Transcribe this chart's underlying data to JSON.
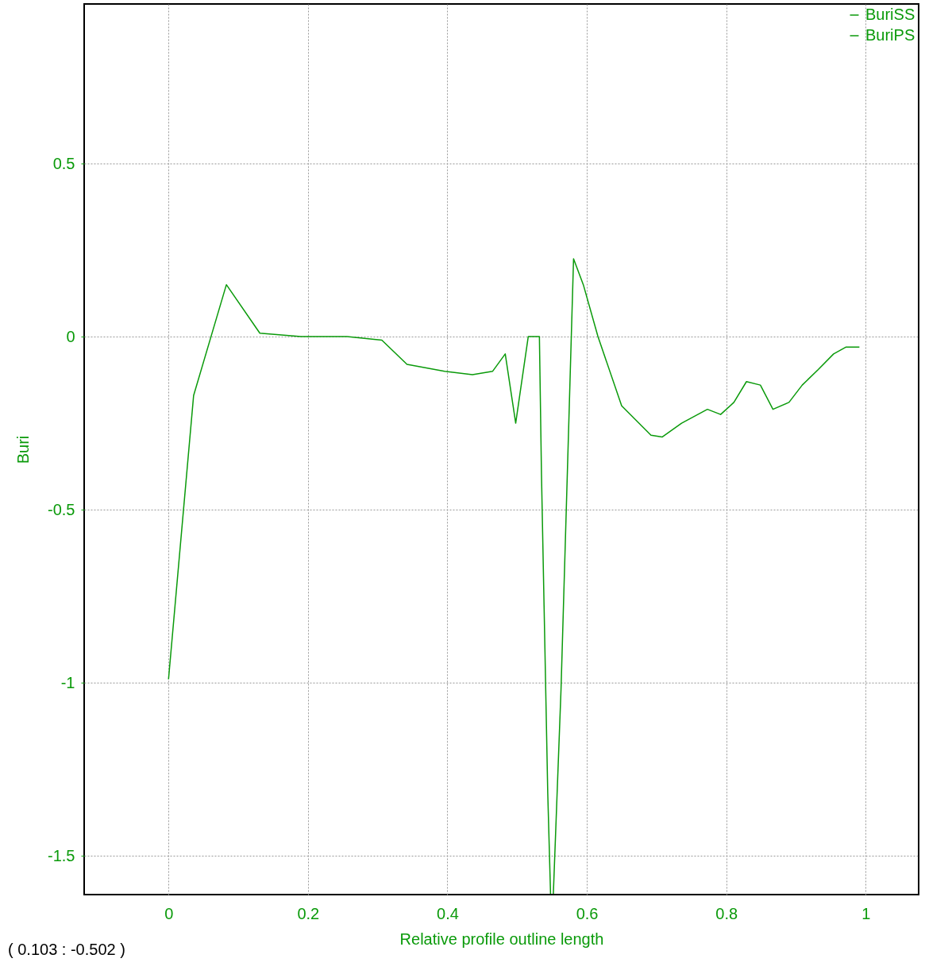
{
  "chart_data": {
    "type": "line",
    "xlabel": "Relative profile outline length",
    "ylabel": "Buri",
    "xlim": [
      -0.121,
      1.076
    ],
    "ylim": [
      -1.612,
      0.961
    ],
    "xticks": [
      0,
      0.2,
      0.4,
      0.6,
      0.8,
      1
    ],
    "yticks": [
      0.5,
      0,
      -0.5,
      -1,
      -1.5
    ],
    "grid": true,
    "legend": "top right",
    "annotations": [
      "( 0.103  : -0.502 )"
    ],
    "series": [
      {
        "name": "BuriSS",
        "color": "#0a9a0a",
        "x": [
          0,
          0.036,
          0.083,
          0.131,
          0.19,
          0.256,
          0.306,
          0.342,
          0.396,
          0.436,
          0.465,
          0.483,
          0.498,
          0.516,
          0.532,
          0.535,
          0.544,
          0.548
        ],
        "values": [
          -0.99,
          -0.17,
          0.15,
          0.01,
          0.0,
          0.0,
          -0.01,
          -0.08,
          -0.1,
          -0.11,
          -0.1,
          -0.05,
          -0.25,
          0.0,
          0.0,
          -0.4,
          -1.32,
          -1.61
        ]
      },
      {
        "name": "BuriPS",
        "color": "#0a9a0a",
        "x": [
          0.552,
          0.563,
          0.572,
          0.581,
          0.595,
          0.616,
          0.65,
          0.692,
          0.708,
          0.736,
          0.773,
          0.792,
          0.811,
          0.829,
          0.849,
          0.867,
          0.89,
          0.909,
          0.932,
          0.954,
          0.972,
          0.991
        ],
        "values": [
          -1.61,
          -1.02,
          -0.4,
          0.225,
          0.15,
          0.0,
          -0.2,
          -0.285,
          -0.29,
          -0.25,
          -0.21,
          -0.225,
          -0.19,
          -0.13,
          -0.14,
          -0.21,
          -0.19,
          -0.14,
          -0.095,
          -0.05,
          -0.03,
          -0.03
        ]
      }
    ]
  }
}
